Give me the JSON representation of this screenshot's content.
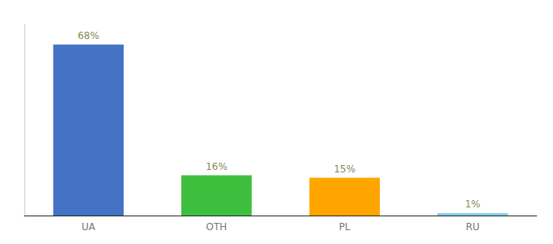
{
  "chart_data": {
    "type": "bar",
    "categories": [
      "UA",
      "OTH",
      "PL",
      "RU"
    ],
    "values": [
      68,
      16,
      15,
      1
    ],
    "value_labels": [
      "68%",
      "16%",
      "15%",
      "1%"
    ],
    "data_labels": true,
    "colors": [
      "#4472C4",
      "#3DBF3D",
      "#FFA500",
      "#87CEEB"
    ],
    "ylim": [
      0,
      76
    ],
    "grid": false,
    "tick_labels": "x"
  }
}
